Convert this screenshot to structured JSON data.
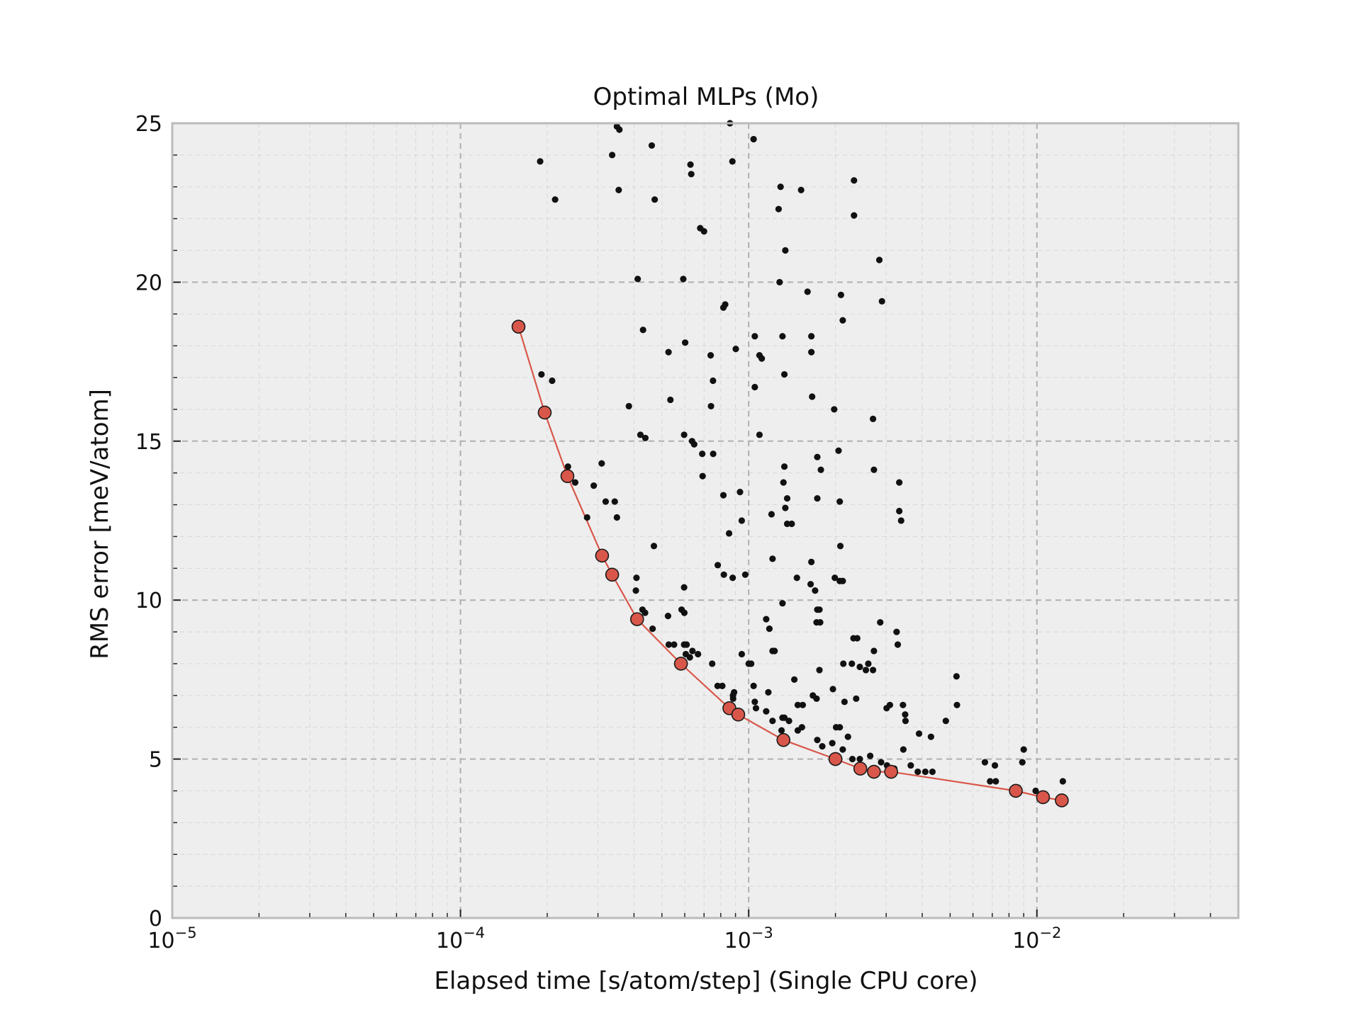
{
  "chart_data": {
    "type": "scatter",
    "title": "Optimal MLPs (Mo)",
    "xlabel": "Elapsed time [s/atom/step] (Single CPU core)",
    "ylabel": "RMS error [meV/atom]",
    "xscale": "log",
    "xlim": [
      1e-05,
      0.05
    ],
    "ylim": [
      0,
      25
    ],
    "grid": true,
    "x_ticks": [
      {
        "value": 1e-05,
        "base": "10",
        "exp": "−5"
      },
      {
        "value": 0.0001,
        "base": "10",
        "exp": "−4"
      },
      {
        "value": 0.001,
        "base": "10",
        "exp": "−3"
      },
      {
        "value": 0.01,
        "base": "10",
        "exp": "−2"
      }
    ],
    "y_ticks": [
      {
        "value": 0,
        "label": "0"
      },
      {
        "value": 5,
        "label": "5"
      },
      {
        "value": 10,
        "label": "10"
      },
      {
        "value": 15,
        "label": "15"
      },
      {
        "value": 20,
        "label": "20"
      },
      {
        "value": 25,
        "label": "25"
      }
    ],
    "colors": {
      "background": "#eeeeee",
      "frame": "#bbbbbb",
      "grid": "#b0b0b0",
      "pareto": "#d9574a",
      "points": "#111111"
    },
    "series": [
      {
        "role": "all-models",
        "points": [
          [
            0.000189,
            23.8
          ],
          [
            0.000213,
            22.6
          ],
          [
            0.000336,
            24.0
          ],
          [
            0.000349,
            24.9
          ],
          [
            0.000356,
            24.8
          ],
          [
            0.000354,
            22.9
          ],
          [
            0.000461,
            24.3
          ],
          [
            0.000472,
            22.6
          ],
          [
            0.000628,
            23.7
          ],
          [
            0.000632,
            23.4
          ],
          [
            0.000679,
            21.7
          ],
          [
            0.0007,
            21.6
          ],
          [
            0.000861,
            25.0
          ],
          [
            0.000878,
            23.8
          ],
          [
            0.00104,
            24.5
          ],
          [
            0.00129,
            23.0
          ],
          [
            0.00127,
            22.3
          ],
          [
            0.00134,
            21.0
          ],
          [
            0.00128,
            20.0
          ],
          [
            0.00152,
            22.9
          ],
          [
            0.00232,
            23.2
          ],
          [
            0.00232,
            22.1
          ],
          [
            0.00284,
            20.7
          ],
          [
            0.000412,
            20.1
          ],
          [
            0.000593,
            20.1
          ],
          [
            0.000829,
            19.3
          ],
          [
            0.000817,
            19.2
          ],
          [
            0.0016,
            19.7
          ],
          [
            0.00209,
            19.6
          ],
          [
            0.0029,
            19.4
          ],
          [
            0.00212,
            18.8
          ],
          [
            0.00043,
            18.5
          ],
          [
            0.000602,
            18.1
          ],
          [
            0.000527,
            17.8
          ],
          [
            0.000738,
            17.7
          ],
          [
            0.000902,
            17.9
          ],
          [
            0.00105,
            18.3
          ],
          [
            0.00109,
            17.7
          ],
          [
            0.00111,
            17.6
          ],
          [
            0.00131,
            18.3
          ],
          [
            0.00165,
            18.3
          ],
          [
            0.00165,
            17.8
          ],
          [
            0.000191,
            17.1
          ],
          [
            0.000208,
            16.9
          ],
          [
            0.000535,
            16.3
          ],
          [
            0.000384,
            16.1
          ],
          [
            0.00074,
            16.1
          ],
          [
            0.000752,
            16.9
          ],
          [
            0.00105,
            16.7
          ],
          [
            0.00133,
            17.1
          ],
          [
            0.00166,
            16.4
          ],
          [
            0.00198,
            16.0
          ],
          [
            0.000421,
            15.2
          ],
          [
            0.000438,
            15.1
          ],
          [
            0.000597,
            15.2
          ],
          [
            0.000636,
            15.0
          ],
          [
            0.000647,
            14.9
          ],
          [
            0.00069,
            14.6
          ],
          [
            0.000753,
            14.6
          ],
          [
            0.00109,
            15.2
          ],
          [
            0.00173,
            14.5
          ],
          [
            0.00178,
            14.1
          ],
          [
            0.00205,
            14.7
          ],
          [
            0.0027,
            15.7
          ],
          [
            0.00272,
            14.1
          ],
          [
            0.000236,
            14.2
          ],
          [
            0.00025,
            13.7
          ],
          [
            0.00029,
            13.6
          ],
          [
            0.000309,
            14.3
          ],
          [
            0.000319,
            13.1
          ],
          [
            0.000343,
            13.1
          ],
          [
            0.000692,
            13.9
          ],
          [
            0.000817,
            13.3
          ],
          [
            0.000933,
            13.4
          ],
          [
            0.00133,
            14.2
          ],
          [
            0.00132,
            13.7
          ],
          [
            0.00136,
            13.2
          ],
          [
            0.00173,
            13.2
          ],
          [
            0.00207,
            13.1
          ],
          [
            0.00333,
            13.7
          ],
          [
            0.000275,
            12.6
          ],
          [
            0.000349,
            12.6
          ],
          [
            0.000946,
            12.5
          ],
          [
            0.0012,
            12.7
          ],
          [
            0.00134,
            12.9
          ],
          [
            0.00141,
            12.4
          ],
          [
            0.00136,
            12.4
          ],
          [
            0.00333,
            12.8
          ],
          [
            0.00338,
            12.5
          ],
          [
            0.000855,
            12.1
          ],
          [
            0.000469,
            11.7
          ],
          [
            0.000781,
            11.1
          ],
          [
            0.00121,
            11.3
          ],
          [
            0.00165,
            11.2
          ],
          [
            0.00208,
            11.7
          ],
          [
            0.000408,
            10.7
          ],
          [
            0.000406,
            10.3
          ],
          [
            0.000597,
            10.4
          ],
          [
            0.00082,
            10.8
          ],
          [
            0.00088,
            10.7
          ],
          [
            0.000973,
            10.8
          ],
          [
            0.00147,
            10.7
          ],
          [
            0.00164,
            10.5
          ],
          [
            0.0017,
            10.3
          ],
          [
            0.00199,
            10.7
          ],
          [
            0.00207,
            10.6
          ],
          [
            0.00212,
            10.6
          ],
          [
            0.000428,
            9.7
          ],
          [
            0.000437,
            9.6
          ],
          [
            0.000464,
            9.1
          ],
          [
            0.000585,
            9.7
          ],
          [
            0.000598,
            9.6
          ],
          [
            0.000525,
            9.5
          ],
          [
            0.00115,
            9.4
          ],
          [
            0.00131,
            9.9
          ],
          [
            0.00173,
            9.7
          ],
          [
            0.00176,
            9.7
          ],
          [
            0.00172,
            9.3
          ],
          [
            0.00177,
            9.3
          ],
          [
            0.00286,
            9.3
          ],
          [
            0.00326,
            9.0
          ],
          [
            0.00118,
            9.1
          ],
          [
            0.000528,
            8.6
          ],
          [
            0.000551,
            8.6
          ],
          [
            0.000597,
            8.6
          ],
          [
            0.000609,
            8.6
          ],
          [
            0.000605,
            8.3
          ],
          [
            0.000625,
            8.2
          ],
          [
            0.000638,
            8.4
          ],
          [
            0.000667,
            8.3
          ],
          [
            0.000946,
            8.3
          ],
          [
            0.00123,
            8.4
          ],
          [
            0.00121,
            8.4
          ],
          [
            0.00231,
            8.8
          ],
          [
            0.00238,
            8.8
          ],
          [
            0.0026,
            8.0
          ],
          [
            0.00272,
            8.4
          ],
          [
            0.00329,
            8.6
          ],
          [
            0.000747,
            8.0
          ],
          [
            0.001,
            8.0
          ],
          [
            0.00102,
            8.0
          ],
          [
            0.00176,
            7.8
          ],
          [
            0.00213,
            8.0
          ],
          [
            0.00228,
            8.0
          ],
          [
            0.00243,
            7.9
          ],
          [
            0.00255,
            7.8
          ],
          [
            0.0027,
            7.8
          ],
          [
            0.00078,
            7.3
          ],
          [
            0.00081,
            7.3
          ],
          [
            0.00089,
            7.1
          ],
          [
            0.000882,
            7.0
          ],
          [
            0.00104,
            7.3
          ],
          [
            0.00117,
            7.1
          ],
          [
            0.00144,
            7.5
          ],
          [
            0.00167,
            7.0
          ],
          [
            0.00196,
            7.2
          ],
          [
            0.00526,
            7.6
          ],
          [
            0.000883,
            6.9
          ],
          [
            0.00105,
            6.8
          ],
          [
            0.00106,
            6.6
          ],
          [
            0.00115,
            6.5
          ],
          [
            0.00148,
            6.7
          ],
          [
            0.00154,
            6.7
          ],
          [
            0.00172,
            6.9
          ],
          [
            0.00215,
            6.8
          ],
          [
            0.00236,
            6.9
          ],
          [
            0.00309,
            6.7
          ],
          [
            0.00343,
            6.7
          ],
          [
            0.00349,
            6.4
          ],
          [
            0.00483,
            6.2
          ],
          [
            0.00528,
            6.7
          ],
          [
            0.00121,
            6.2
          ],
          [
            0.00131,
            6.3
          ],
          [
            0.00133,
            6.3
          ],
          [
            0.00138,
            6.2
          ],
          [
            0.0013,
            5.9
          ],
          [
            0.00148,
            5.9
          ],
          [
            0.00153,
            6.0
          ],
          [
            0.00201,
            6.0
          ],
          [
            0.00207,
            6.0
          ],
          [
            0.00301,
            6.6
          ],
          [
            0.0035,
            6.2
          ],
          [
            0.0039,
            5.8
          ],
          [
            0.00429,
            5.7
          ],
          [
            0.00173,
            5.6
          ],
          [
            0.0018,
            5.4
          ],
          [
            0.00195,
            5.5
          ],
          [
            0.00212,
            5.3
          ],
          [
            0.00221,
            5.7
          ],
          [
            0.00264,
            5.1
          ],
          [
            0.00288,
            4.9
          ],
          [
            0.00302,
            4.8
          ],
          [
            0.00344,
            5.3
          ],
          [
            0.00365,
            4.8
          ],
          [
            0.00386,
            4.6
          ],
          [
            0.0041,
            4.6
          ],
          [
            0.00434,
            4.6
          ],
          [
            0.0032,
            4.7
          ],
          [
            0.00229,
            5.0
          ],
          [
            0.00243,
            5.0
          ],
          [
            0.0066,
            4.9
          ],
          [
            0.00715,
            4.8
          ],
          [
            0.00688,
            4.3
          ],
          [
            0.0072,
            4.3
          ],
          [
            0.0086,
            4.1
          ],
          [
            0.0089,
            4.9
          ],
          [
            0.009,
            5.3
          ],
          [
            0.0099,
            4.0
          ],
          [
            0.0123,
            4.3
          ],
          [
            0.0121,
            3.7
          ]
        ]
      },
      {
        "role": "pareto-front",
        "points": [
          [
            0.000159,
            18.6
          ],
          [
            0.000196,
            15.9
          ],
          [
            0.000235,
            13.9
          ],
          [
            0.00031,
            11.4
          ],
          [
            0.000336,
            10.8
          ],
          [
            0.00041,
            9.4
          ],
          [
            0.000582,
            8.0
          ],
          [
            0.000857,
            6.6
          ],
          [
            0.00092,
            6.4
          ],
          [
            0.00132,
            5.6
          ],
          [
            0.002,
            5.0
          ],
          [
            0.00244,
            4.7
          ],
          [
            0.00272,
            4.6
          ],
          [
            0.00312,
            4.6
          ],
          [
            0.00845,
            4.0
          ],
          [
            0.0105,
            3.8
          ],
          [
            0.0122,
            3.7
          ]
        ]
      }
    ]
  }
}
